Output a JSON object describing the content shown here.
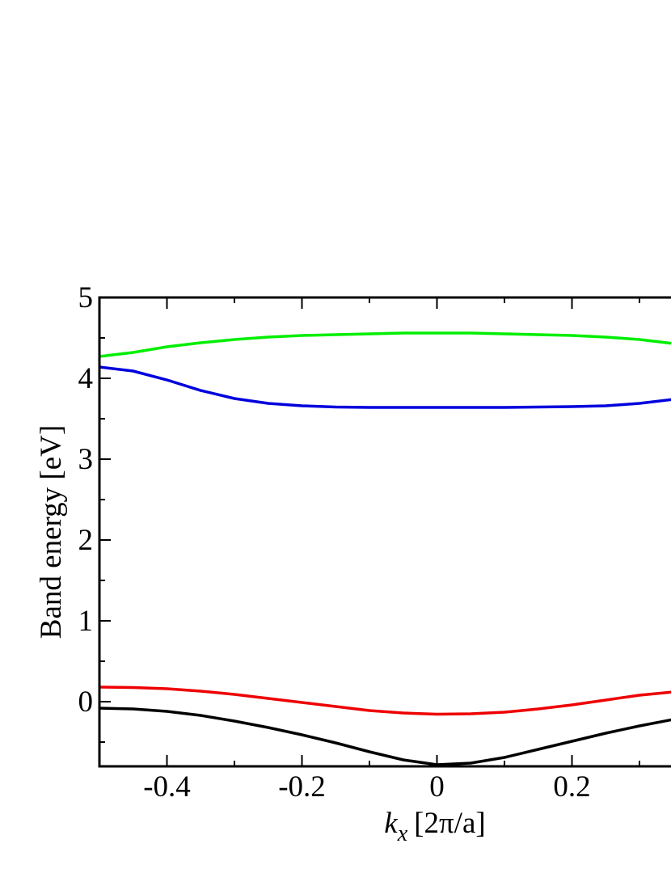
{
  "chart_data": {
    "type": "line",
    "xlabel": {
      "symbol": "k",
      "subscript": "x",
      "unit": "[2π/a]"
    },
    "ylabel": "Band energy [eV]",
    "x": [
      -0.5,
      -0.45,
      -0.4,
      -0.35,
      -0.3,
      -0.25,
      -0.2,
      -0.15,
      -0.1,
      -0.05,
      0,
      0.05,
      0.1,
      0.15,
      0.2,
      0.25,
      0.3,
      0.35
    ],
    "series": [
      {
        "color": "#00ee00",
        "values": [
          4.27,
          4.32,
          4.39,
          4.44,
          4.48,
          4.51,
          4.53,
          4.54,
          4.55,
          4.56,
          4.56,
          4.56,
          4.55,
          4.54,
          4.53,
          4.51,
          4.48,
          4.43
        ]
      },
      {
        "color": "#0000dd",
        "values": [
          4.14,
          4.09,
          3.98,
          3.85,
          3.75,
          3.69,
          3.66,
          3.645,
          3.64,
          3.64,
          3.64,
          3.64,
          3.64,
          3.645,
          3.65,
          3.66,
          3.69,
          3.74
        ]
      },
      {
        "color": "#ee0000",
        "values": [
          0.18,
          0.175,
          0.16,
          0.13,
          0.09,
          0.04,
          -0.01,
          -0.06,
          -0.11,
          -0.14,
          -0.155,
          -0.15,
          -0.13,
          -0.09,
          -0.04,
          0.02,
          0.08,
          0.12
        ]
      },
      {
        "color": "#000000",
        "values": [
          -0.08,
          -0.09,
          -0.12,
          -0.17,
          -0.24,
          -0.32,
          -0.41,
          -0.51,
          -0.62,
          -0.72,
          -0.78,
          -0.76,
          -0.69,
          -0.59,
          -0.49,
          -0.39,
          -0.3,
          -0.22
        ]
      }
    ],
    "xlim": [
      -0.5,
      0.5
    ],
    "ylim": [
      -0.8,
      5
    ],
    "xticks": [
      -0.4,
      -0.2,
      0,
      0.2
    ],
    "yticks": [
      0,
      1,
      2,
      3,
      4,
      5
    ],
    "grid": false
  }
}
